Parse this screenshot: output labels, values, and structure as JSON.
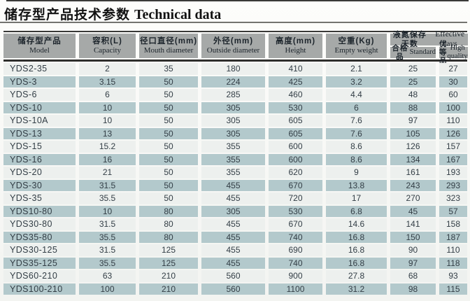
{
  "page": {
    "title_zh": "储存型产品技术参数",
    "title_en": "Technical data"
  },
  "table": {
    "columns": [
      {
        "zh": "储存型产品",
        "en": "Model"
      },
      {
        "zh": "容积(L)",
        "en": "Capacity"
      },
      {
        "zh": "径口直径(mm)",
        "en": "Mouth diameter"
      },
      {
        "zh": "外径(mm)",
        "en": "Outside diameter"
      },
      {
        "zh": "高度(mm)",
        "en": "Height"
      },
      {
        "zh": "空重(Kg)",
        "en": "Empty weight"
      }
    ],
    "effective_days_group": {
      "zh": "液氮保存天数",
      "en": "Effective days"
    },
    "sub_columns": [
      {
        "zh": "合格品",
        "en": "Standard"
      },
      {
        "zh": "优等品",
        "en": "High quality"
      }
    ],
    "rows": [
      [
        "YDS2-35",
        "2",
        "35",
        "180",
        "410",
        "2.1",
        "25",
        "27"
      ],
      [
        "YDS-3",
        "3.15",
        "50",
        "224",
        "425",
        "3.2",
        "25",
        "30"
      ],
      [
        "YDS-6",
        "6",
        "50",
        "285",
        "460",
        "4.4",
        "48",
        "60"
      ],
      [
        "YDS-10",
        "10",
        "50",
        "305",
        "530",
        "6",
        "88",
        "100"
      ],
      [
        "YDS-10A",
        "10",
        "50",
        "305",
        "605",
        "7.6",
        "97",
        "110"
      ],
      [
        "YDS-13",
        "13",
        "50",
        "305",
        "605",
        "7.6",
        "105",
        "126"
      ],
      [
        "YDS-15",
        "15.2",
        "50",
        "355",
        "600",
        "8.6",
        "126",
        "157"
      ],
      [
        "YDS-16",
        "16",
        "50",
        "355",
        "600",
        "8.6",
        "134",
        "167"
      ],
      [
        "YDS-20",
        "21",
        "50",
        "355",
        "620",
        "9",
        "161",
        "193"
      ],
      [
        "YDS-30",
        "31.5",
        "50",
        "455",
        "670",
        "13.8",
        "243",
        "293"
      ],
      [
        "YDS-35",
        "35.5",
        "50",
        "455",
        "720",
        "17",
        "270",
        "323"
      ],
      [
        "YDS10-80",
        "10",
        "80",
        "305",
        "530",
        "6.8",
        "45",
        "57"
      ],
      [
        "YDS30-80",
        "31.5",
        "80",
        "455",
        "670",
        "14.6",
        "141",
        "158"
      ],
      [
        "YDS35-80",
        "35.5",
        "80",
        "455",
        "740",
        "16.8",
        "150",
        "187"
      ],
      [
        "YDS30-125",
        "31.5",
        "125",
        "455",
        "690",
        "16.8",
        "90",
        "110"
      ],
      [
        "YDS35-125",
        "35.5",
        "125",
        "455",
        "740",
        "16.8",
        "97",
        "118"
      ],
      [
        "YDS60-210",
        "63",
        "210",
        "560",
        "900",
        "27.8",
        "68",
        "93"
      ],
      [
        "YDS100-210",
        "100",
        "210",
        "560",
        "1100",
        "31.2",
        "98",
        "115"
      ]
    ]
  },
  "colors": {
    "header_bg": "#a6a9a8",
    "row_light": "#edf0ee",
    "row_teal": "#b3c9cc",
    "rule_dark": "#3a3a38",
    "text_dark": "#1c242b"
  }
}
